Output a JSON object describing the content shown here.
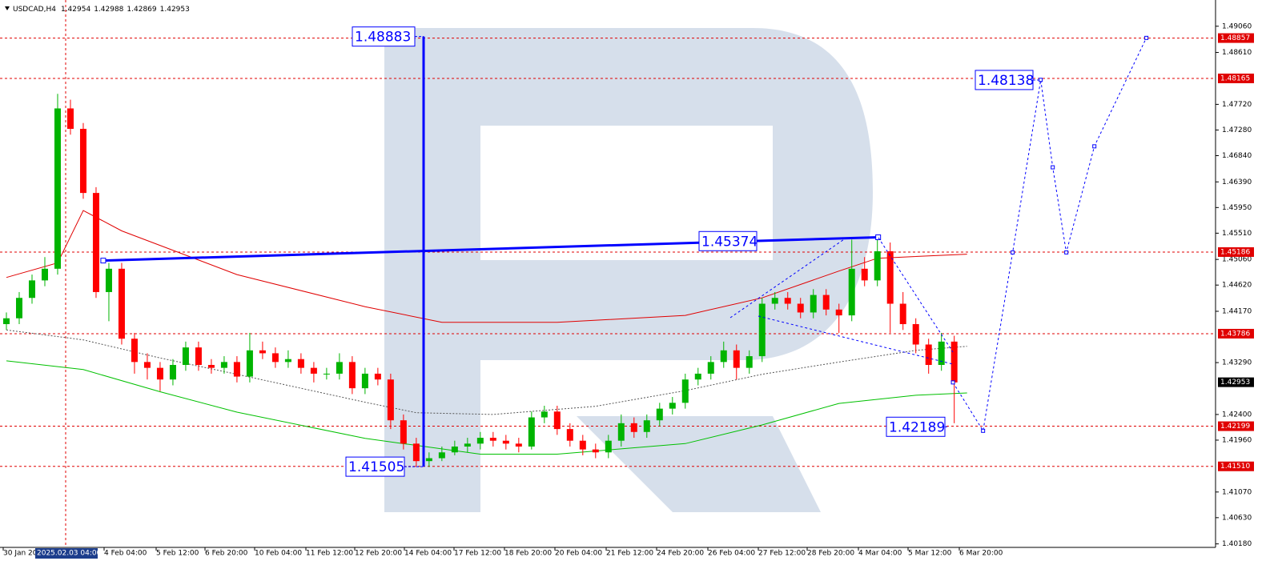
{
  "chart_data": {
    "type": "candlestick",
    "symbol": "USDCAD,H4",
    "ohlc": [
      1.42954,
      1.42988,
      1.42869,
      1.42953
    ],
    "up_color": "#00b400",
    "down_color": "#ff0000",
    "candles": {
      "open": [
        1.4395,
        1.4405,
        1.444,
        1.447,
        1.449,
        1.4765,
        1.473,
        1.462,
        1.445,
        1.449,
        1.437,
        1.433,
        1.432,
        1.43,
        1.4325,
        1.4355,
        1.4325,
        1.432,
        1.433,
        1.4305,
        1.435,
        1.4345,
        1.433,
        1.4335,
        1.432,
        1.431,
        1.431,
        1.433,
        1.4285,
        1.431,
        1.43,
        1.423,
        1.419,
        1.416,
        1.4165,
        1.4175,
        1.4185,
        1.419,
        1.42,
        1.4195,
        1.419,
        1.4185,
        1.4235,
        1.4245,
        1.4215,
        1.4195,
        1.418,
        1.4175,
        1.4195,
        1.4225,
        1.421,
        1.423,
        1.425,
        1.426,
        1.43,
        1.431,
        1.433,
        1.435,
        1.432,
        1.434,
        1.443,
        1.444,
        1.443,
        1.4415,
        1.4445,
        1.442,
        1.441,
        1.449,
        1.447,
        1.452,
        1.443,
        1.4395,
        1.436,
        1.4325,
        1.4365
      ],
      "high": [
        1.4415,
        1.445,
        1.448,
        1.451,
        1.479,
        1.478,
        1.474,
        1.463,
        1.45,
        1.45,
        1.438,
        1.4345,
        1.433,
        1.4335,
        1.4365,
        1.4365,
        1.4335,
        1.434,
        1.434,
        1.438,
        1.4365,
        1.4355,
        1.435,
        1.4345,
        1.433,
        1.432,
        1.4345,
        1.434,
        1.432,
        1.432,
        1.431,
        1.424,
        1.42,
        1.4175,
        1.4185,
        1.4195,
        1.42,
        1.421,
        1.421,
        1.4205,
        1.42,
        1.4245,
        1.4255,
        1.4255,
        1.4225,
        1.4205,
        1.419,
        1.4205,
        1.424,
        1.4235,
        1.424,
        1.426,
        1.427,
        1.431,
        1.432,
        1.434,
        1.4365,
        1.436,
        1.435,
        1.444,
        1.445,
        1.445,
        1.444,
        1.4455,
        1.4455,
        1.443,
        1.454,
        1.451,
        1.4545,
        1.4535,
        1.445,
        1.4405,
        1.437,
        1.438,
        1.4375
      ],
      "low": [
        1.4385,
        1.4395,
        1.443,
        1.446,
        1.448,
        1.472,
        1.461,
        1.444,
        1.44,
        1.436,
        1.431,
        1.43,
        1.428,
        1.429,
        1.4315,
        1.4315,
        1.431,
        1.431,
        1.4295,
        1.4295,
        1.4335,
        1.432,
        1.432,
        1.431,
        1.4295,
        1.43,
        1.43,
        1.4275,
        1.4275,
        1.429,
        1.4215,
        1.418,
        1.415,
        1.415,
        1.416,
        1.417,
        1.4175,
        1.418,
        1.4185,
        1.418,
        1.4175,
        1.418,
        1.4225,
        1.4205,
        1.4185,
        1.417,
        1.4165,
        1.4165,
        1.4185,
        1.42,
        1.42,
        1.422,
        1.424,
        1.425,
        1.429,
        1.43,
        1.432,
        1.43,
        1.431,
        1.433,
        1.442,
        1.442,
        1.4405,
        1.4405,
        1.441,
        1.438,
        1.44,
        1.446,
        1.446,
        1.438,
        1.4385,
        1.4345,
        1.431,
        1.4315,
        1.4225
      ],
      "close": [
        1.4405,
        1.444,
        1.447,
        1.449,
        1.4765,
        1.473,
        1.462,
        1.445,
        1.449,
        1.437,
        1.433,
        1.432,
        1.43,
        1.4325,
        1.4355,
        1.4325,
        1.432,
        1.433,
        1.4305,
        1.435,
        1.4345,
        1.433,
        1.4335,
        1.432,
        1.431,
        1.431,
        1.433,
        1.4285,
        1.431,
        1.43,
        1.423,
        1.419,
        1.416,
        1.4165,
        1.4175,
        1.4185,
        1.419,
        1.42,
        1.4195,
        1.419,
        1.4185,
        1.4235,
        1.4245,
        1.4215,
        1.4195,
        1.418,
        1.4175,
        1.4195,
        1.4225,
        1.421,
        1.423,
        1.425,
        1.426,
        1.43,
        1.431,
        1.433,
        1.435,
        1.432,
        1.434,
        1.443,
        1.444,
        1.443,
        1.4415,
        1.4445,
        1.442,
        1.441,
        1.449,
        1.447,
        1.452,
        1.443,
        1.4395,
        1.436,
        1.4325,
        1.4365,
        1.4295
      ]
    },
    "xlim": [
      -0.5,
      94.4
    ],
    "ylim": [
      1.4012,
      1.4951
    ],
    "yticks": [
      {
        "value": 1.4906,
        "label": "1.49060"
      },
      {
        "value": 1.4861,
        "label": "1.48610"
      },
      {
        "value": 1.4772,
        "label": "1.47720"
      },
      {
        "value": 1.4728,
        "label": "1.47280"
      },
      {
        "value": 1.4684,
        "label": "1.46840"
      },
      {
        "value": 1.4639,
        "label": "1.46390"
      },
      {
        "value": 1.4595,
        "label": "1.45950"
      },
      {
        "value": 1.4551,
        "label": "1.45510"
      },
      {
        "value": 1.4506,
        "label": "1.45060"
      },
      {
        "value": 1.4462,
        "label": "1.44620"
      },
      {
        "value": 1.4417,
        "label": "1.44170"
      },
      {
        "value": 1.4329,
        "label": "1.43290"
      },
      {
        "value": 1.424,
        "label": "1.42400"
      },
      {
        "value": 1.4196,
        "label": "1.41960"
      },
      {
        "value": 1.4107,
        "label": "1.41070"
      },
      {
        "value": 1.4063,
        "label": "1.40630"
      },
      {
        "value": 1.4018,
        "label": "1.40180"
      }
    ],
    "xlabels": [
      "30 Jan 20",
      "4 Feb 04:00",
      "5 Feb 12:00",
      "6 Feb 20:00",
      "10 Feb 04:00",
      "11 Feb 12:00",
      "12 Feb 20:00",
      "14 Feb 04:00",
      "17 Feb 12:00",
      "18 Feb 20:00",
      "20 Feb 04:00",
      "21 Feb 12:00",
      "24 Feb 20:00",
      "26 Feb 04:00",
      "27 Feb 12:00",
      "28 Feb 20:00",
      "4 Mar 04:00",
      "5 Mar 12:00",
      "6 Mar 20:00"
    ],
    "cursor_label": "2025.02.03 04:00",
    "level_color": "#e00000",
    "levels": [
      1.48857,
      1.48165,
      1.45186,
      1.43786,
      1.42199,
      {
        "value": 1.4151,
        "label": "1.41510"
      }
    ],
    "indicators": [
      {
        "color": "#e00000",
        "x": [
          0,
          4,
          6,
          9,
          18,
          28,
          34,
          43,
          53,
          59,
          65,
          68,
          75
        ],
        "values": [
          1.4475,
          1.45,
          1.459,
          1.4555,
          1.448,
          1.4425,
          1.4398,
          1.4398,
          1.441,
          1.444,
          1.4486,
          1.4508,
          1.4515
        ]
      },
      {
        "color": "#00c000",
        "x": [
          0,
          6,
          12,
          18,
          28,
          37,
          43,
          53,
          59,
          65,
          71,
          75
        ],
        "values": [
          1.4332,
          1.4317,
          1.4279,
          1.4244,
          1.4199,
          1.4172,
          1.4172,
          1.419,
          1.4222,
          1.4259,
          1.4273,
          1.4277
        ]
      },
      {
        "color": "#555555",
        "dashed": true,
        "x": [
          0,
          6,
          12,
          18,
          28,
          32,
          38,
          46,
          53,
          59,
          65,
          71,
          75
        ],
        "values": [
          1.4385,
          1.4368,
          1.4337,
          1.4309,
          1.4261,
          1.4243,
          1.424,
          1.4254,
          1.4281,
          1.4309,
          1.433,
          1.435,
          1.4357
        ]
      }
    ],
    "annotation_color": "#0000ff",
    "annotations": [
      1.48883,
      1.45374,
      1.41505,
      1.48138,
      1.42189
    ],
    "trend_line": {
      "x": [
        7.56,
        68.06
      ],
      "values": [
        1.4504,
        1.4544
      ]
    },
    "forecast": {
      "x": [
        73.9,
        76.25,
        78.56,
        80.75,
        81.69,
        82.75,
        84.94,
        89
      ],
      "values": [
        1.4295,
        1.4212,
        1.4518,
        1.4814,
        1.4664,
        1.4518,
        1.47,
        1.4886
      ]
    }
  }
}
